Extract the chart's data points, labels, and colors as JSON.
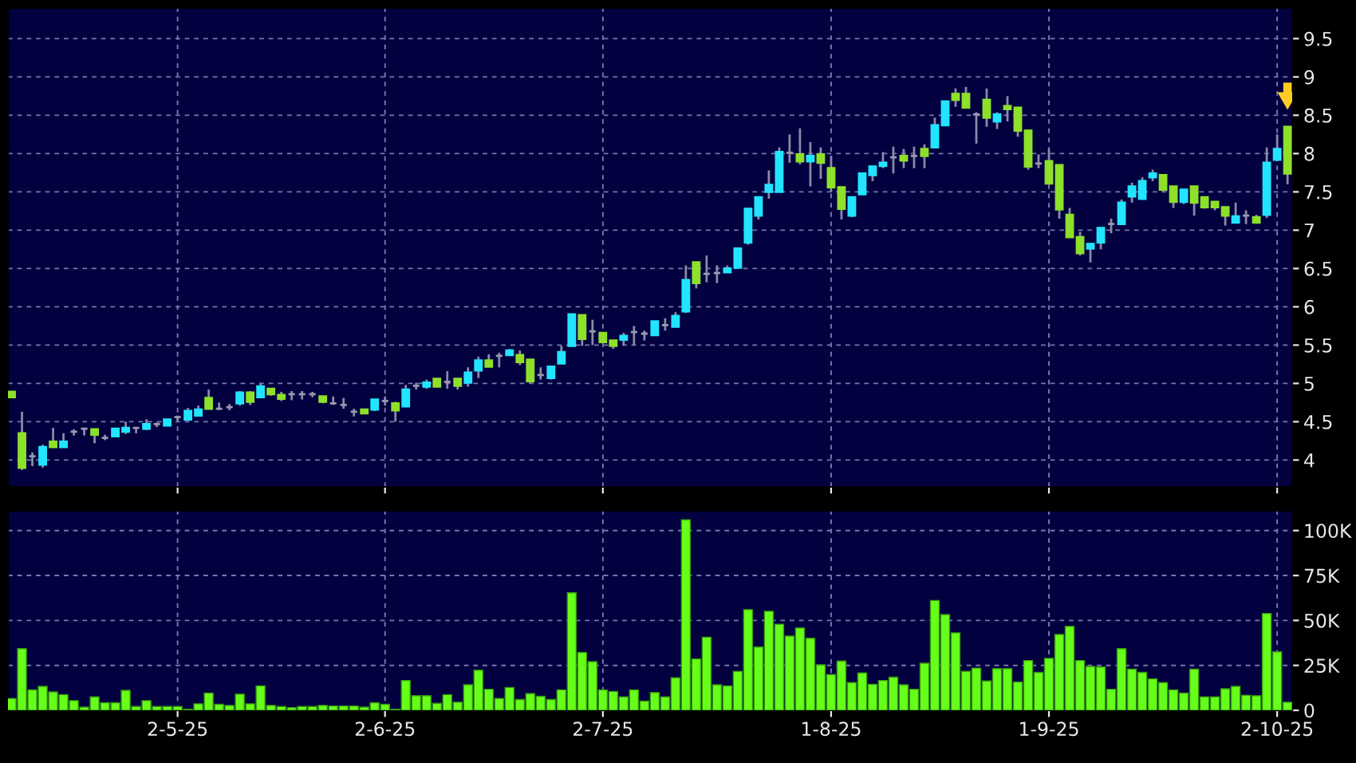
{
  "chart_data": [
    {
      "type": "candlestick",
      "categories": [
        null,
        null,
        null,
        null,
        null,
        null,
        null,
        null,
        null,
        null,
        null,
        null,
        null,
        null,
        null,
        null,
        null,
        null,
        null,
        null,
        null,
        null,
        null,
        null,
        null,
        null,
        null,
        null,
        null,
        null,
        null,
        null,
        null,
        null,
        null,
        null,
        null,
        null,
        null,
        null,
        null,
        null,
        null,
        null,
        null,
        null,
        null,
        null,
        null,
        null,
        null,
        null,
        null,
        null,
        null,
        null,
        null,
        null,
        null,
        null,
        null,
        null,
        null,
        null,
        null,
        null,
        null,
        null,
        null,
        null,
        null,
        null,
        null,
        null,
        null,
        null,
        null,
        null,
        null,
        null,
        null,
        null,
        null,
        null,
        null,
        null,
        null,
        null,
        null,
        null,
        null,
        null,
        null,
        null,
        null,
        null,
        null,
        null,
        null,
        null,
        null,
        null,
        null,
        null,
        null,
        null,
        null,
        null,
        null,
        null,
        null,
        null,
        null,
        null,
        null,
        null,
        null,
        null,
        null,
        null,
        null,
        null,
        null,
        null
      ],
      "ohlc": [
        [
          4.89,
          4.9,
          4.81,
          4.82
        ],
        [
          4.35,
          4.63,
          3.87,
          3.9
        ],
        [
          4.05,
          4.1,
          3.92,
          4.05
        ],
        [
          3.94,
          4.2,
          3.9,
          4.17
        ],
        [
          4.24,
          4.42,
          4.17,
          4.17
        ],
        [
          4.17,
          4.35,
          4.17,
          4.24
        ],
        [
          4.37,
          4.4,
          4.32,
          4.37
        ],
        [
          4.41,
          4.41,
          4.32,
          4.41
        ],
        [
          4.4,
          4.4,
          4.22,
          4.33
        ],
        [
          4.29,
          4.33,
          4.26,
          4.29
        ],
        [
          4.31,
          4.41,
          4.31,
          4.41
        ],
        [
          4.37,
          4.5,
          4.34,
          4.42
        ],
        [
          4.42,
          4.42,
          4.35,
          4.42
        ],
        [
          4.41,
          4.53,
          4.39,
          4.47
        ],
        [
          4.47,
          4.49,
          4.43,
          4.47
        ],
        [
          4.45,
          4.53,
          4.45,
          4.53
        ],
        [
          4.56,
          4.58,
          4.51,
          4.56
        ],
        [
          4.53,
          4.68,
          4.51,
          4.64
        ],
        [
          4.58,
          4.71,
          4.58,
          4.66
        ],
        [
          4.81,
          4.92,
          4.67,
          4.67
        ],
        [
          4.67,
          4.75,
          4.65,
          4.67
        ],
        [
          4.69,
          4.73,
          4.65,
          4.69
        ],
        [
          4.74,
          4.9,
          4.71,
          4.88
        ],
        [
          4.88,
          4.9,
          4.72,
          4.76
        ],
        [
          4.82,
          5.0,
          4.82,
          4.96
        ],
        [
          4.93,
          4.93,
          4.84,
          4.86
        ],
        [
          4.85,
          4.89,
          4.77,
          4.8
        ],
        [
          4.86,
          4.9,
          4.78,
          4.86
        ],
        [
          4.86,
          4.9,
          4.79,
          4.86
        ],
        [
          4.86,
          4.89,
          4.82,
          4.86
        ],
        [
          4.83,
          4.83,
          4.74,
          4.76
        ],
        [
          4.74,
          4.83,
          4.72,
          4.74
        ],
        [
          4.72,
          4.81,
          4.67,
          4.72
        ],
        [
          4.63,
          4.67,
          4.57,
          4.63
        ],
        [
          4.66,
          4.66,
          4.6,
          4.61
        ],
        [
          4.66,
          4.79,
          4.64,
          4.79
        ],
        [
          4.77,
          4.83,
          4.71,
          4.77
        ],
        [
          4.74,
          4.76,
          4.5,
          4.65
        ],
        [
          4.7,
          4.98,
          4.7,
          4.92
        ],
        [
          4.97,
          5.01,
          4.92,
          4.97
        ],
        [
          4.96,
          5.05,
          4.93,
          5.01
        ],
        [
          5.06,
          5.06,
          4.95,
          4.96
        ],
        [
          5.02,
          5.16,
          4.93,
          5.02
        ],
        [
          5.06,
          5.06,
          4.92,
          4.97
        ],
        [
          5.01,
          5.21,
          4.96,
          5.14
        ],
        [
          5.17,
          5.35,
          5.07,
          5.3
        ],
        [
          5.3,
          5.38,
          5.22,
          5.22
        ],
        [
          5.36,
          5.4,
          5.21,
          5.36
        ],
        [
          5.37,
          5.45,
          5.37,
          5.43
        ],
        [
          5.37,
          5.43,
          5.24,
          5.28
        ],
        [
          5.31,
          5.31,
          5.0,
          5.03
        ],
        [
          5.11,
          5.21,
          5.05,
          5.11
        ],
        [
          5.07,
          5.22,
          5.05,
          5.22
        ],
        [
          5.26,
          5.49,
          5.26,
          5.41
        ],
        [
          5.49,
          5.9,
          5.49,
          5.9
        ],
        [
          5.89,
          5.89,
          5.49,
          5.58
        ],
        [
          5.68,
          5.83,
          5.5,
          5.68
        ],
        [
          5.66,
          5.66,
          5.54,
          5.54
        ],
        [
          5.56,
          5.56,
          5.45,
          5.49
        ],
        [
          5.57,
          5.66,
          5.5,
          5.62
        ],
        [
          5.67,
          5.75,
          5.5,
          5.67
        ],
        [
          5.65,
          5.69,
          5.56,
          5.65
        ],
        [
          5.63,
          5.81,
          5.62,
          5.81
        ],
        [
          5.76,
          5.85,
          5.69,
          5.76
        ],
        [
          5.74,
          5.93,
          5.74,
          5.88
        ],
        [
          5.94,
          6.54,
          5.92,
          6.35
        ],
        [
          6.58,
          6.58,
          6.24,
          6.31
        ],
        [
          6.43,
          6.67,
          6.32,
          6.43
        ],
        [
          6.44,
          6.54,
          6.31,
          6.44
        ],
        [
          6.45,
          6.54,
          6.45,
          6.5
        ],
        [
          6.51,
          6.76,
          6.51,
          6.76
        ],
        [
          6.84,
          7.28,
          6.81,
          7.28
        ],
        [
          7.19,
          7.43,
          7.14,
          7.43
        ],
        [
          7.5,
          7.78,
          7.41,
          7.59
        ],
        [
          7.5,
          8.08,
          7.5,
          8.02
        ],
        [
          8.01,
          8.25,
          7.88,
          8.01
        ],
        [
          7.99,
          8.33,
          7.86,
          7.9
        ],
        [
          7.9,
          8.15,
          7.57,
          7.97
        ],
        [
          7.99,
          8.08,
          7.67,
          7.88
        ],
        [
          7.81,
          7.97,
          7.5,
          7.56
        ],
        [
          7.56,
          7.56,
          7.14,
          7.28
        ],
        [
          7.19,
          7.43,
          7.17,
          7.43
        ],
        [
          7.47,
          7.74,
          7.47,
          7.74
        ],
        [
          7.72,
          7.83,
          7.64,
          7.83
        ],
        [
          7.84,
          8.02,
          7.81,
          7.88
        ],
        [
          7.95,
          8.09,
          7.74,
          7.95
        ],
        [
          7.97,
          8.06,
          7.81,
          7.91
        ],
        [
          7.97,
          8.09,
          7.81,
          7.97
        ],
        [
          8.06,
          8.12,
          7.81,
          7.97
        ],
        [
          8.08,
          8.47,
          8.08,
          8.37
        ],
        [
          8.37,
          8.68,
          8.37,
          8.68
        ],
        [
          8.78,
          8.85,
          8.61,
          8.7
        ],
        [
          8.78,
          8.87,
          8.6,
          8.6
        ],
        [
          8.51,
          8.54,
          8.13,
          8.51
        ],
        [
          8.7,
          8.85,
          8.35,
          8.47
        ],
        [
          8.42,
          8.54,
          8.32,
          8.51
        ],
        [
          8.62,
          8.75,
          8.42,
          8.58
        ],
        [
          8.6,
          8.6,
          8.22,
          8.3
        ],
        [
          8.3,
          8.3,
          7.79,
          7.83
        ],
        [
          7.87,
          7.99,
          7.81,
          7.87
        ],
        [
          7.9,
          8.06,
          7.61,
          7.61
        ],
        [
          7.85,
          7.85,
          7.15,
          7.27
        ],
        [
          7.2,
          7.29,
          6.91,
          6.91
        ],
        [
          6.91,
          6.98,
          6.67,
          6.7
        ],
        [
          6.76,
          6.82,
          6.58,
          6.82
        ],
        [
          6.84,
          7.03,
          6.75,
          7.03
        ],
        [
          7.08,
          7.15,
          6.96,
          7.08
        ],
        [
          7.08,
          7.4,
          7.08,
          7.36
        ],
        [
          7.44,
          7.62,
          7.36,
          7.57
        ],
        [
          7.41,
          7.69,
          7.41,
          7.64
        ],
        [
          7.69,
          7.79,
          7.64,
          7.74
        ],
        [
          7.72,
          7.72,
          7.5,
          7.53
        ],
        [
          7.57,
          7.57,
          7.29,
          7.37
        ],
        [
          7.37,
          7.53,
          7.34,
          7.53
        ],
        [
          7.57,
          7.57,
          7.19,
          7.36
        ],
        [
          7.43,
          7.43,
          7.28,
          7.3
        ],
        [
          7.37,
          7.37,
          7.26,
          7.3
        ],
        [
          7.3,
          7.3,
          7.06,
          7.19
        ],
        [
          7.1,
          7.36,
          7.1,
          7.18
        ],
        [
          7.19,
          7.26,
          7.08,
          7.19
        ],
        [
          7.17,
          7.2,
          7.1,
          7.1
        ],
        [
          7.2,
          8.08,
          7.16,
          7.88
        ],
        [
          7.92,
          8.25,
          7.9,
          8.06
        ],
        [
          8.35,
          8.35,
          7.6,
          7.74
        ]
      ],
      "colors": [
        "#8ee02a",
        "#8ee02a",
        "#9a9ab0",
        "#22e4ff",
        "#8ee02a",
        "#22e4ff",
        "#9a9ab0",
        "#9a9ab0",
        "#8ee02a",
        "#9a9ab0",
        "#22e4ff",
        "#22e4ff",
        "#9a9ab0",
        "#22e4ff",
        "#9a9ab0",
        "#22e4ff",
        "#9a9ab0",
        "#22e4ff",
        "#22e4ff",
        "#8ee02a",
        "#9a9ab0",
        "#9a9ab0",
        "#22e4ff",
        "#8ee02a",
        "#22e4ff",
        "#8ee02a",
        "#8ee02a",
        "#9a9ab0",
        "#9a9ab0",
        "#9a9ab0",
        "#8ee02a",
        "#9a9ab0",
        "#9a9ab0",
        "#9a9ab0",
        "#8ee02a",
        "#22e4ff",
        "#9a9ab0",
        "#8ee02a",
        "#22e4ff",
        "#9a9ab0",
        "#22e4ff",
        "#8ee02a",
        "#9a9ab0",
        "#8ee02a",
        "#22e4ff",
        "#22e4ff",
        "#8ee02a",
        "#9a9ab0",
        "#22e4ff",
        "#8ee02a",
        "#8ee02a",
        "#9a9ab0",
        "#22e4ff",
        "#22e4ff",
        "#22e4ff",
        "#8ee02a",
        "#9a9ab0",
        "#8ee02a",
        "#8ee02a",
        "#22e4ff",
        "#9a9ab0",
        "#9a9ab0",
        "#22e4ff",
        "#9a9ab0",
        "#22e4ff",
        "#22e4ff",
        "#8ee02a",
        "#9a9ab0",
        "#9a9ab0",
        "#22e4ff",
        "#22e4ff",
        "#22e4ff",
        "#22e4ff",
        "#22e4ff",
        "#22e4ff",
        "#9a9ab0",
        "#8ee02a",
        "#22e4ff",
        "#8ee02a",
        "#8ee02a",
        "#8ee02a",
        "#22e4ff",
        "#22e4ff",
        "#22e4ff",
        "#22e4ff",
        "#9a9ab0",
        "#8ee02a",
        "#9a9ab0",
        "#8ee02a",
        "#22e4ff",
        "#22e4ff",
        "#8ee02a",
        "#8ee02a",
        "#9a9ab0",
        "#8ee02a",
        "#22e4ff",
        "#8ee02a",
        "#8ee02a",
        "#8ee02a",
        "#9a9ab0",
        "#8ee02a",
        "#8ee02a",
        "#8ee02a",
        "#8ee02a",
        "#22e4ff",
        "#22e4ff",
        "#9a9ab0",
        "#22e4ff",
        "#22e4ff",
        "#22e4ff",
        "#22e4ff",
        "#8ee02a",
        "#8ee02a",
        "#22e4ff",
        "#8ee02a",
        "#8ee02a",
        "#8ee02a",
        "#8ee02a",
        "#22e4ff",
        "#9a9ab0",
        "#8ee02a",
        "#22e4ff",
        "#22e4ff",
        "#8ee02a"
      ],
      "ylim": [
        3.65,
        9.9
      ],
      "yticks": [
        4,
        4.5,
        5,
        5.5,
        6,
        6.5,
        7,
        7.5,
        8,
        8.5,
        9,
        9.5
      ],
      "grid": true,
      "tick_labels": "y"
    },
    {
      "type": "bar",
      "categories": [
        null,
        null,
        null,
        null,
        null,
        null,
        null,
        null,
        null,
        null,
        null,
        null,
        null,
        null,
        null,
        null,
        "2-5-25",
        null,
        null,
        null,
        null,
        null,
        null,
        null,
        null,
        null,
        null,
        null,
        null,
        null,
        null,
        null,
        null,
        null,
        null,
        null,
        "2-6-25",
        null,
        null,
        null,
        null,
        null,
        null,
        null,
        null,
        null,
        null,
        null,
        null,
        null,
        null,
        null,
        null,
        null,
        null,
        null,
        null,
        "2-7-25",
        null,
        null,
        null,
        null,
        null,
        null,
        null,
        null,
        null,
        null,
        null,
        null,
        null,
        null,
        null,
        null,
        null,
        null,
        null,
        null,
        null,
        "1-8-25",
        null,
        null,
        null,
        null,
        null,
        null,
        null,
        null,
        null,
        null,
        null,
        null,
        null,
        null,
        null,
        null,
        null,
        null,
        null,
        null,
        "1-9-25",
        null,
        null,
        null,
        null,
        null,
        null,
        null,
        null,
        null,
        null,
        null,
        null,
        null,
        null,
        null,
        null,
        null,
        null,
        null,
        null,
        null,
        "2-10-25",
        null
      ],
      "values": [
        6600,
        34300,
        11400,
        13300,
        10200,
        8700,
        5400,
        1800,
        7500,
        4200,
        4200,
        11100,
        2100,
        5400,
        2100,
        2100,
        2100,
        600,
        3600,
        9600,
        3300,
        2700,
        9000,
        3600,
        13600,
        2700,
        2100,
        1500,
        2100,
        2100,
        2700,
        2400,
        2400,
        2400,
        1800,
        4200,
        3300,
        600,
        16600,
        8100,
        8100,
        3900,
        8700,
        4500,
        14200,
        22300,
        11700,
        6600,
        12700,
        6000,
        9300,
        7800,
        6000,
        11400,
        65400,
        32200,
        27100,
        11400,
        10500,
        7500,
        11400,
        5100,
        9900,
        7500,
        18100,
        106000,
        28600,
        40700,
        14200,
        13600,
        21700,
        56000,
        35200,
        55100,
        47900,
        41300,
        45800,
        40100,
        25300,
        19900,
        27400,
        15400,
        20800,
        14500,
        16600,
        18400,
        14200,
        11700,
        26200,
        61100,
        53300,
        43100,
        21700,
        23500,
        16300,
        23200,
        23200,
        15700,
        27700,
        21100,
        28900,
        42200,
        46700,
        27700,
        24400,
        24100,
        11700,
        34300,
        22900,
        21100,
        17500,
        15400,
        11400,
        9600,
        22900,
        7500,
        7500,
        12000,
        13300,
        8400,
        8100,
        53900,
        32500,
        4500
      ],
      "color": "#66ff1a",
      "ylim": [
        0,
        111000
      ],
      "yticks": [
        0,
        {
          "value": 25000,
          "label": "25K"
        },
        {
          "value": 50000,
          "label": "50K"
        },
        {
          "value": 75000,
          "label": "75K"
        },
        {
          "value": 100000,
          "label": "100K"
        }
      ],
      "grid": true
    }
  ]
}
